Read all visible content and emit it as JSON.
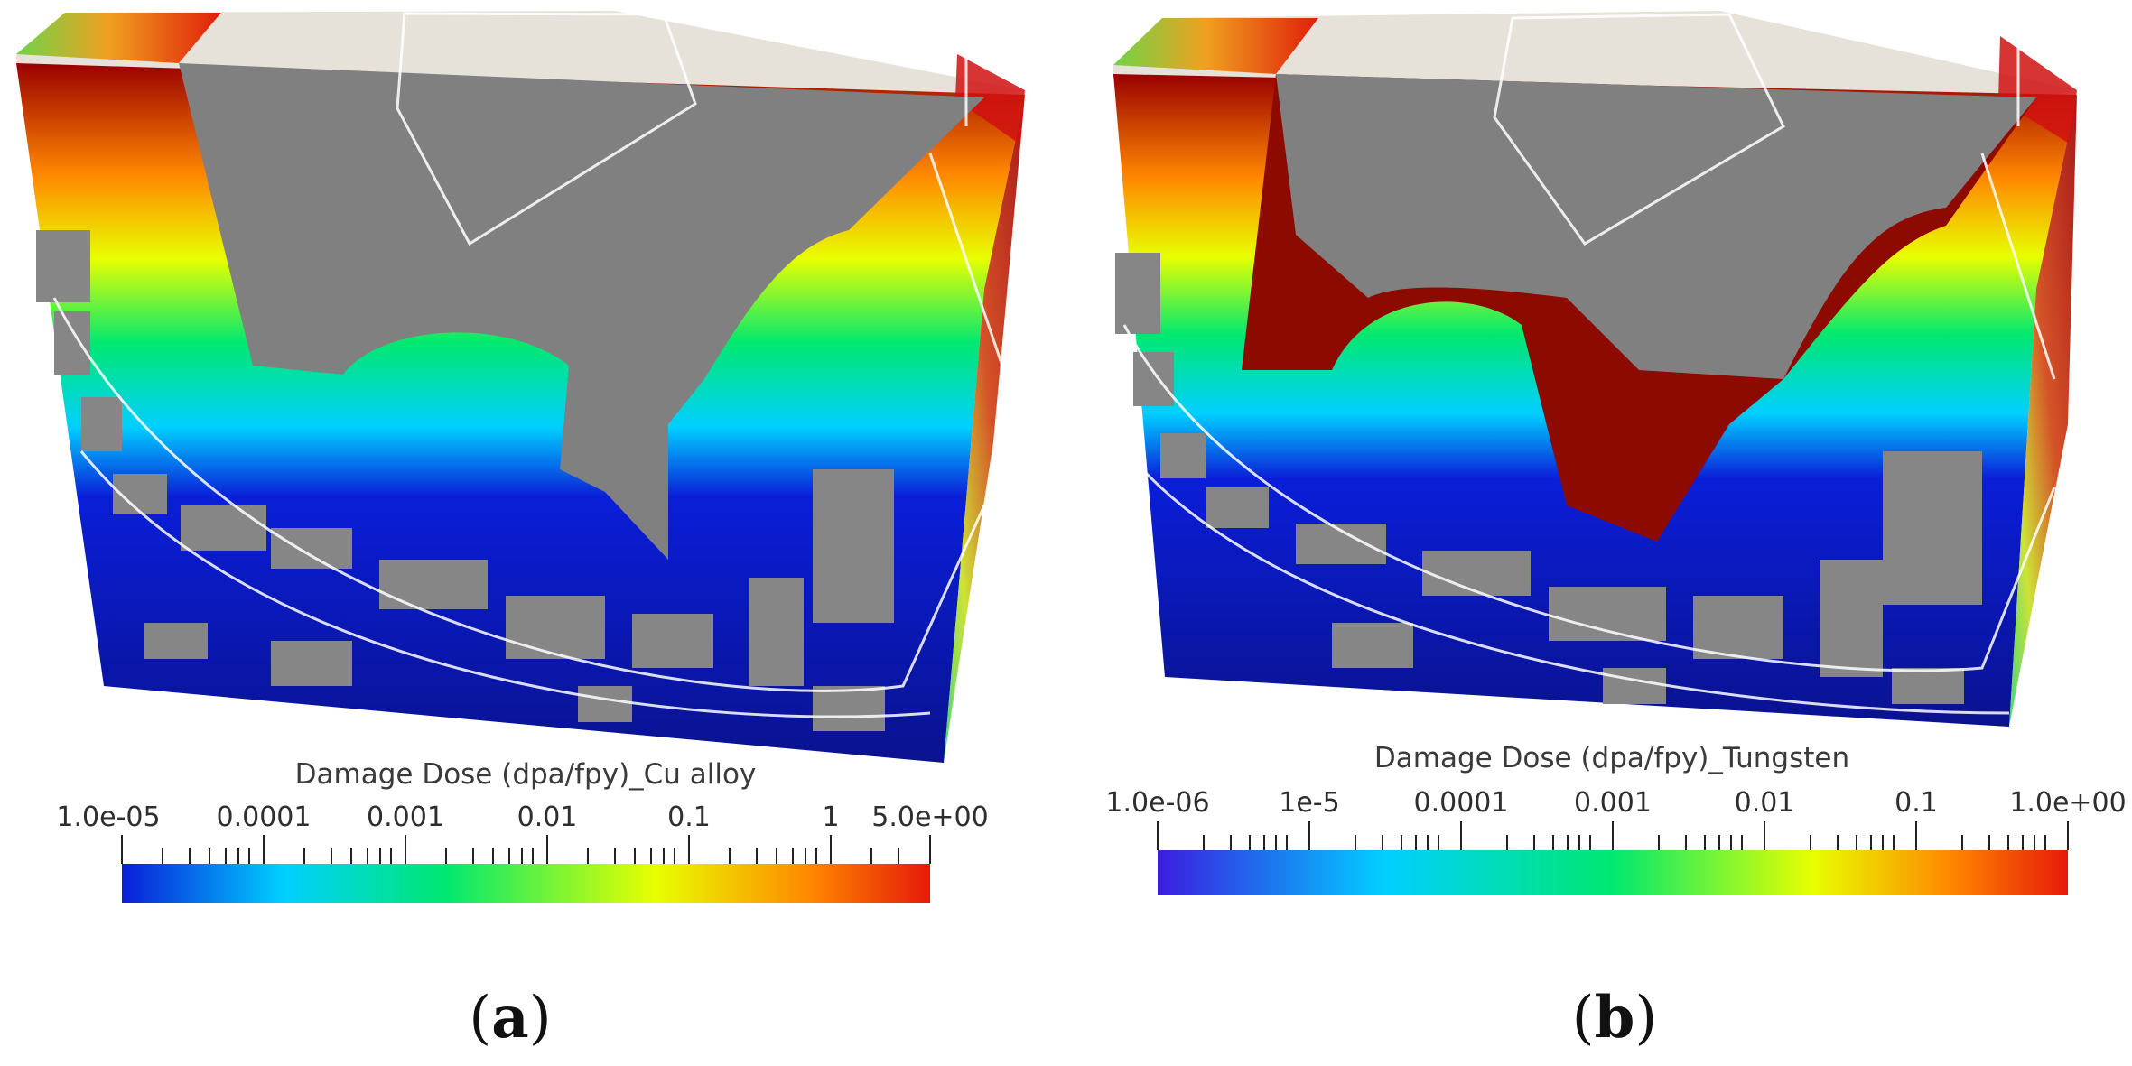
{
  "panels": [
    {
      "id": "a",
      "label_open": "(",
      "label_letter": "a",
      "label_close": ")",
      "colorbar": {
        "title": "Damage Dose (dpa/fpy)_Cu alloy",
        "scale": "log",
        "range": [
          1e-05,
          5.0
        ],
        "tick_labels": [
          "1.0e-05",
          "0.0001",
          "0.001",
          "0.01",
          "0.1",
          "1",
          "5.0e+00"
        ],
        "colormap": [
          "#0a1ed8",
          "#00cfff",
          "#00e870",
          "#e8ff00",
          "#ff8800",
          "#e61a0a"
        ]
      }
    },
    {
      "id": "b",
      "label_open": "(",
      "label_letter": "b",
      "label_close": ")",
      "colorbar": {
        "title": "Damage Dose (dpa/fpy)_Tungsten",
        "scale": "log",
        "range": [
          1e-06,
          1.0
        ],
        "tick_labels": [
          "1.0e-06",
          "1e-5",
          "0.0001",
          "0.001",
          "0.01",
          "0.1",
          "1.0e+00"
        ],
        "colormap": [
          "#3b1de0",
          "#00cfff",
          "#00e870",
          "#e8ff00",
          "#ff8800",
          "#e61a0a"
        ]
      }
    }
  ]
}
